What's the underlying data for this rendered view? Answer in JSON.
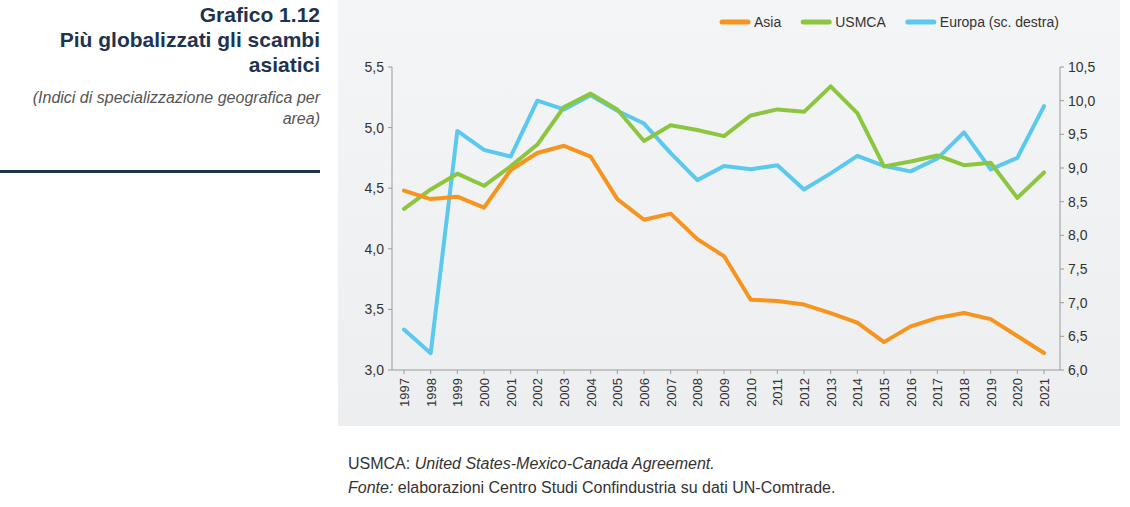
{
  "chart_data": {
    "type": "line",
    "figure_label": "Grafico 1.12",
    "title": "Più globalizzati gli scambi asiatici",
    "subtitle": "(Indici di specializzazione geografica per area)",
    "categories": [
      "1997",
      "1998",
      "1999",
      "2000",
      "2001",
      "2002",
      "2003",
      "2004",
      "2005",
      "2006",
      "2007",
      "2008",
      "2009",
      "2010",
      "2011",
      "2012",
      "2013",
      "2014",
      "2015",
      "2016",
      "2017",
      "2018",
      "2019",
      "2020",
      "2021"
    ],
    "series": [
      {
        "name": "Asia",
        "color": "#f7941d",
        "values": [
          4.48,
          4.41,
          4.43,
          4.34,
          4.65,
          4.79,
          4.85,
          4.76,
          4.41,
          4.24,
          4.29,
          4.08,
          3.94,
          3.58,
          3.57,
          3.54,
          3.47,
          3.39,
          3.23,
          3.36,
          3.43,
          3.47,
          3.42,
          3.28,
          3.14
        ]
      },
      {
        "name": "USMCA",
        "color": "#8cc63f",
        "values": [
          4.33,
          4.49,
          4.62,
          4.52,
          4.68,
          4.86,
          5.17,
          5.28,
          5.15,
          4.89,
          5.02,
          4.98,
          4.93,
          5.1,
          5.15,
          5.13,
          5.34,
          5.12,
          4.68,
          4.72,
          4.77,
          4.69,
          4.71,
          4.42,
          4.63
        ]
      },
      {
        "name": "Europa (sc. destra)",
        "color": "#5bc8f0",
        "axis": "y2",
        "values": [
          6.6,
          6.25,
          9.55,
          9.27,
          9.17,
          10.0,
          9.87,
          10.08,
          9.85,
          9.66,
          9.22,
          8.82,
          9.03,
          8.98,
          9.04,
          8.68,
          8.92,
          9.18,
          9.03,
          8.95,
          9.14,
          9.53,
          8.98,
          9.15,
          9.92
        ]
      }
    ],
    "ylim": [
      3.0,
      5.5
    ],
    "yticks": [
      {
        "value": 3.0,
        "label": "3,0"
      },
      {
        "value": 3.5,
        "label": "3,5"
      },
      {
        "value": 4.0,
        "label": "4,0"
      },
      {
        "value": 4.5,
        "label": "4,5"
      },
      {
        "value": 5.0,
        "label": "5,0"
      },
      {
        "value": 5.5,
        "label": "5,5"
      }
    ],
    "y2lim": [
      6.0,
      10.5
    ],
    "y2ticks": [
      {
        "value": 6.0,
        "label": "6,0"
      },
      {
        "value": 6.5,
        "label": "6,5"
      },
      {
        "value": 7.0,
        "label": "7,0"
      },
      {
        "value": 7.5,
        "label": "7,5"
      },
      {
        "value": 8.0,
        "label": "8,0"
      },
      {
        "value": 8.5,
        "label": "8,5"
      },
      {
        "value": 9.0,
        "label": "9,0"
      },
      {
        "value": 9.5,
        "label": "9,5"
      },
      {
        "value": 10.0,
        "label": "10,0"
      },
      {
        "value": 10.5,
        "label": "10,5"
      }
    ],
    "grid": false,
    "legend": "top-right",
    "notes": [
      {
        "label": "USMCA:",
        "text": "United States-Mexico-Canada Agreement."
      },
      {
        "label": "Fonte:",
        "text": "elaborazioni Centro Studi Confindustria su dati UN-Comtrade."
      }
    ]
  }
}
